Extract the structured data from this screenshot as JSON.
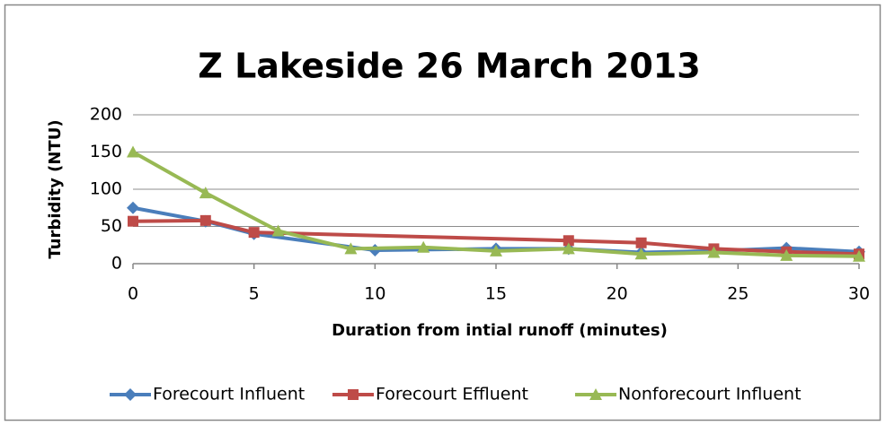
{
  "chart_data": {
    "type": "line",
    "title": "Z Lakeside 26 March 2013",
    "xlabel": "Duration from intial runoff (minutes)",
    "ylabel": "Turbidity (NTU)",
    "xlim": [
      0,
      30
    ],
    "xticks": [
      0,
      5,
      10,
      15,
      20,
      25,
      30
    ],
    "ylim": [
      0,
      200
    ],
    "yticks": [
      0,
      50,
      100,
      150,
      200
    ],
    "grid": true,
    "legend": "bottom",
    "series": [
      {
        "name": "Forecourt Influent",
        "color": "#4a7ebb",
        "marker": "diamond",
        "x": [
          0,
          3,
          5,
          10,
          15,
          18,
          21,
          24,
          27,
          30
        ],
        "values": [
          75,
          57,
          40,
          18,
          20,
          20,
          15,
          17,
          21,
          16
        ]
      },
      {
        "name": "Forecourt Effluent",
        "color": "#be4b48",
        "marker": "square",
        "x": [
          0,
          3,
          5,
          18,
          21,
          24,
          27,
          30
        ],
        "values": [
          57,
          58,
          42,
          31,
          28,
          20,
          16,
          13
        ]
      },
      {
        "name": "Nonforecourt Influent",
        "color": "#98b954",
        "marker": "triangle",
        "x": [
          0,
          3,
          6,
          9,
          12,
          15,
          18,
          21,
          24,
          27,
          30
        ],
        "values": [
          150,
          95,
          44,
          20,
          22,
          17,
          20,
          13,
          15,
          11,
          10
        ]
      }
    ]
  }
}
